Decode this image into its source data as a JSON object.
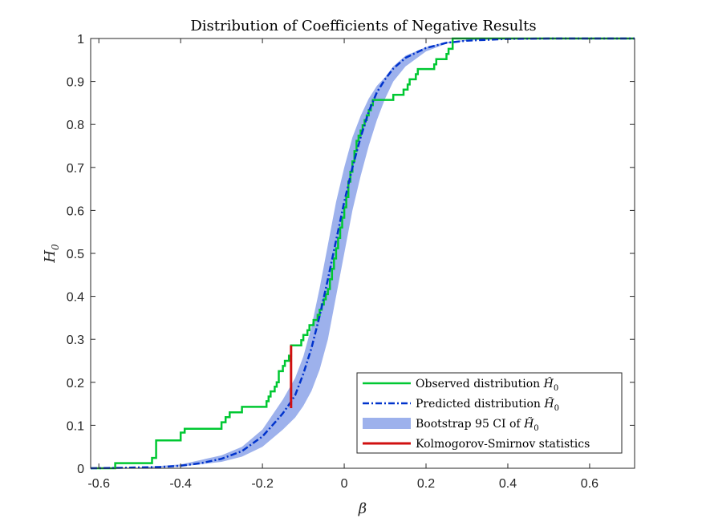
{
  "chart_data": {
    "type": "line",
    "title": "Distribution of Coefficients of Negative Results",
    "xlabel": "β",
    "ylabel": "H",
    "ylabel_sub": "0",
    "xlim": [
      -0.62,
      0.71
    ],
    "ylim": [
      0,
      1
    ],
    "xticks": [
      -0.6,
      -0.4,
      -0.2,
      0,
      0.2,
      0.4,
      0.6
    ],
    "xtick_labels": [
      "-0.6",
      "-0.4",
      "-0.2",
      "0",
      "0.2",
      "0.4",
      "0.6"
    ],
    "yticks": [
      0,
      0.1,
      0.2,
      0.3,
      0.4,
      0.5,
      0.6,
      0.7,
      0.8,
      0.9,
      1
    ],
    "ytick_labels": [
      "0",
      "0.1",
      "0.2",
      "0.3",
      "0.4",
      "0.5",
      "0.6",
      "0.7",
      "0.8",
      "0.9",
      "1"
    ],
    "grid": false,
    "legend_position": "bottom-right",
    "colors": {
      "observed": "#00c832",
      "predicted": "#0033cc",
      "ci_band": "#9db1ec",
      "ks": "#d01010"
    },
    "series": [
      {
        "name": "Observed distribution Ĥ",
        "legend_text": "Observed distribution ",
        "legend_symbol": "Ĥ",
        "legend_sub": "0",
        "style": "step",
        "x": [
          -0.62,
          -0.56,
          -0.47,
          -0.46,
          -0.4,
          -0.39,
          -0.3,
          -0.29,
          -0.28,
          -0.27,
          -0.25,
          -0.19,
          -0.185,
          -0.18,
          -0.17,
          -0.165,
          -0.16,
          -0.15,
          -0.145,
          -0.135,
          -0.13,
          -0.105,
          -0.1,
          -0.09,
          -0.085,
          -0.075,
          -0.065,
          -0.06,
          -0.055,
          -0.05,
          -0.045,
          -0.04,
          -0.035,
          -0.03,
          -0.025,
          -0.02,
          -0.015,
          -0.01,
          -0.005,
          0.0,
          0.005,
          0.01,
          0.015,
          0.02,
          0.025,
          0.03,
          0.035,
          0.04,
          0.045,
          0.05,
          0.055,
          0.06,
          0.065,
          0.07,
          0.075,
          0.08,
          0.09,
          0.1,
          0.12,
          0.145,
          0.155,
          0.16,
          0.175,
          0.18,
          0.22,
          0.225,
          0.25,
          0.255,
          0.265,
          0.3,
          0.71
        ],
        "y": [
          0,
          0.012,
          0.024,
          0.065,
          0.083,
          0.092,
          0.107,
          0.119,
          0.13,
          0.13,
          0.143,
          0.156,
          0.167,
          0.179,
          0.19,
          0.2,
          0.226,
          0.238,
          0.25,
          0.262,
          0.286,
          0.298,
          0.31,
          0.321,
          0.333,
          0.345,
          0.357,
          0.369,
          0.381,
          0.393,
          0.405,
          0.417,
          0.44,
          0.464,
          0.488,
          0.512,
          0.536,
          0.56,
          0.583,
          0.607,
          0.631,
          0.667,
          0.69,
          0.714,
          0.738,
          0.762,
          0.774,
          0.786,
          0.798,
          0.81,
          0.821,
          0.833,
          0.845,
          0.857,
          0.857,
          0.857,
          0.857,
          0.857,
          0.869,
          0.881,
          0.893,
          0.905,
          0.917,
          0.929,
          0.94,
          0.952,
          0.964,
          0.976,
          1.0,
          1.0,
          1.0
        ]
      },
      {
        "name": "Predicted distribution H̃",
        "legend_text": "Predicted distribution ",
        "legend_symbol": "H̃",
        "legend_sub": "0",
        "style": "dash-dot",
        "x": [
          -0.62,
          -0.55,
          -0.5,
          -0.45,
          -0.4,
          -0.35,
          -0.3,
          -0.25,
          -0.2,
          -0.17,
          -0.15,
          -0.13,
          -0.12,
          -0.1,
          -0.08,
          -0.06,
          -0.04,
          -0.02,
          0.0,
          0.02,
          0.04,
          0.06,
          0.08,
          0.1,
          0.12,
          0.15,
          0.2,
          0.25,
          0.3,
          0.4,
          0.5,
          0.6,
          0.71
        ],
        "y": [
          0.0,
          0.001,
          0.002,
          0.003,
          0.006,
          0.012,
          0.022,
          0.04,
          0.074,
          0.106,
          0.128,
          0.155,
          0.17,
          0.22,
          0.28,
          0.355,
          0.44,
          0.53,
          0.62,
          0.7,
          0.77,
          0.83,
          0.875,
          0.905,
          0.93,
          0.955,
          0.978,
          0.99,
          0.995,
          0.999,
          1.0,
          1.0,
          1.0
        ]
      },
      {
        "name": "Bootstrap 95 CI of H̃",
        "legend_text": "Bootstrap 95 CI of ",
        "legend_symbol": "H̃",
        "legend_sub": "0",
        "style": "band",
        "x": [
          -0.5,
          -0.4,
          -0.3,
          -0.25,
          -0.2,
          -0.15,
          -0.12,
          -0.1,
          -0.08,
          -0.06,
          -0.04,
          -0.02,
          0.0,
          0.02,
          0.04,
          0.06,
          0.08,
          0.1,
          0.12,
          0.15,
          0.2,
          0.25,
          0.3,
          0.4
        ],
        "lower": [
          0.0,
          0.004,
          0.015,
          0.027,
          0.05,
          0.09,
          0.118,
          0.145,
          0.18,
          0.23,
          0.3,
          0.4,
          0.5,
          0.6,
          0.68,
          0.75,
          0.81,
          0.86,
          0.9,
          0.935,
          0.97,
          0.988,
          0.995,
          1.0
        ],
        "upper": [
          0.002,
          0.009,
          0.03,
          0.05,
          0.09,
          0.16,
          0.21,
          0.26,
          0.33,
          0.42,
          0.52,
          0.62,
          0.7,
          0.77,
          0.82,
          0.86,
          0.89,
          0.91,
          0.935,
          0.96,
          0.98,
          0.992,
          0.997,
          1.0
        ]
      },
      {
        "name": "Kolmogorov-Smirnov statistics",
        "legend_text": "Kolmogorov-Smirnov statistics",
        "legend_symbol": "",
        "legend_sub": "",
        "style": "segment",
        "x": [
          -0.13,
          -0.13
        ],
        "y": [
          0.14,
          0.286
        ]
      }
    ]
  }
}
